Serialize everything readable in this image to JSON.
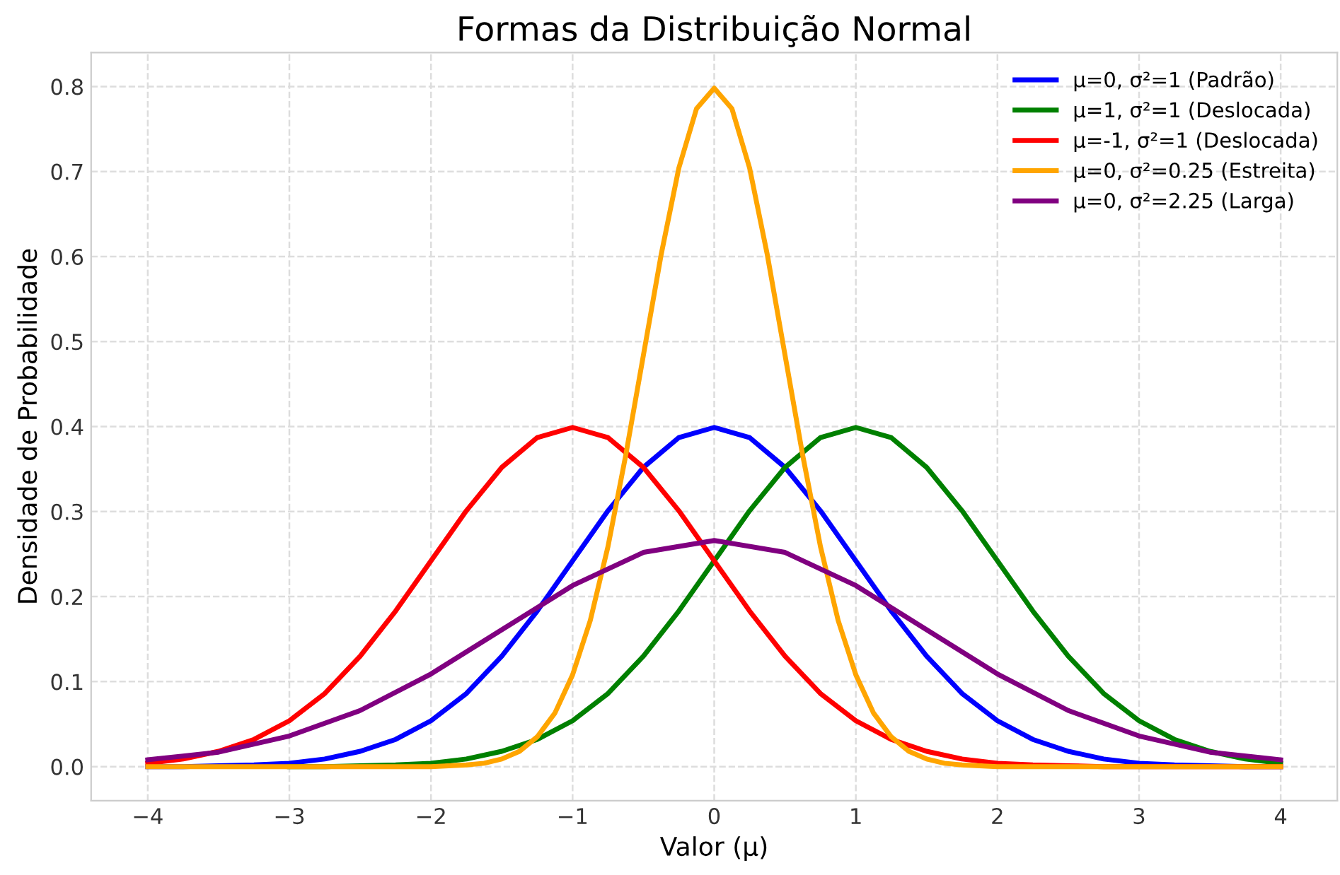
{
  "chart_data": {
    "type": "line",
    "title": "Formas da Distribuição Normal",
    "xlabel": "Valor (μ)",
    "ylabel": "Densidade de Probabilidade",
    "x": [
      -4,
      -3.75,
      -3.5,
      -3.25,
      -3,
      -2.75,
      -2.5,
      -2.25,
      -2,
      -1.75,
      -1.5,
      -1.25,
      -1,
      -0.75,
      -0.5,
      -0.25,
      0,
      0.25,
      0.5,
      0.75,
      1,
      1.25,
      1.5,
      1.75,
      2,
      2.25,
      2.5,
      2.75,
      3,
      3.25,
      3.5,
      3.75,
      4
    ],
    "series": [
      {
        "name": "μ=0, σ²=1 (Padrão)",
        "color": "#0000ff",
        "values": [
          0.0,
          0.0,
          0.001,
          0.002,
          0.004,
          0.009,
          0.018,
          0.032,
          0.054,
          0.086,
          0.13,
          0.183,
          0.242,
          0.301,
          0.352,
          0.387,
          0.399,
          0.387,
          0.352,
          0.301,
          0.242,
          0.183,
          0.13,
          0.086,
          0.054,
          0.032,
          0.018,
          0.009,
          0.004,
          0.002,
          0.001,
          0.0,
          0.0
        ]
      },
      {
        "name": "μ=1, σ²=1 (Deslocada)",
        "color": "#008000",
        "values": [
          null,
          null,
          null,
          null,
          0.0,
          0.0,
          0.001,
          0.002,
          0.004,
          0.009,
          0.018,
          0.032,
          0.054,
          0.086,
          0.13,
          0.183,
          0.242,
          0.301,
          0.352,
          0.387,
          0.399,
          0.387,
          0.352,
          0.301,
          0.242,
          0.183,
          0.13,
          0.086,
          0.054,
          0.032,
          0.018,
          0.009,
          0.004
        ]
      },
      {
        "name": "μ=-1, σ²=1 (Deslocada)",
        "color": "#ff0000",
        "values": [
          0.004,
          0.009,
          0.018,
          0.032,
          0.054,
          0.086,
          0.13,
          0.183,
          0.242,
          0.301,
          0.352,
          0.387,
          0.399,
          0.387,
          0.352,
          0.301,
          0.242,
          0.183,
          0.13,
          0.086,
          0.054,
          0.032,
          0.018,
          0.009,
          0.004,
          0.002,
          0.001,
          0.0,
          0.0,
          0.0,
          0.0,
          0.0,
          0.0
        ]
      },
      {
        "name": "μ=0, σ²=0.25 (Estreita)",
        "color": "#ffa500",
        "x": [
          -4,
          -2,
          -1.75,
          -1.625,
          -1.5,
          -1.375,
          -1.25,
          -1.125,
          -1,
          -0.875,
          -0.75,
          -0.625,
          -0.5,
          -0.375,
          -0.25,
          -0.125,
          0,
          0.125,
          0.25,
          0.375,
          0.5,
          0.625,
          0.75,
          0.875,
          1,
          1.125,
          1.25,
          1.375,
          1.5,
          1.625,
          1.75,
          2,
          4
        ],
        "values": [
          0.0,
          0.0,
          0.002,
          0.004,
          0.009,
          0.018,
          0.035,
          0.063,
          0.108,
          0.172,
          0.259,
          0.366,
          0.484,
          0.602,
          0.704,
          0.774,
          0.798,
          0.774,
          0.704,
          0.602,
          0.484,
          0.366,
          0.259,
          0.172,
          0.108,
          0.063,
          0.035,
          0.018,
          0.009,
          0.004,
          0.002,
          0.0,
          0.0
        ]
      },
      {
        "name": "μ=0, σ²=2.25 (Larga)",
        "color": "#800080",
        "x": [
          -4,
          -3.5,
          -3,
          -2.5,
          -2,
          -1.5,
          -1,
          -0.5,
          0,
          0.5,
          1,
          1.5,
          2,
          2.5,
          3,
          3.5,
          4
        ],
        "values": [
          0.008,
          0.017,
          0.036,
          0.066,
          0.109,
          0.161,
          0.213,
          0.252,
          0.266,
          0.252,
          0.213,
          0.161,
          0.109,
          0.066,
          0.036,
          0.017,
          0.008
        ]
      }
    ],
    "xlim": [
      -4.4,
      4.4
    ],
    "ylim": [
      -0.04,
      0.84
    ],
    "xticks": [
      {
        "value": -4,
        "label": "−4"
      },
      {
        "value": -3,
        "label": "−3"
      },
      {
        "value": -2,
        "label": "−2"
      },
      {
        "value": -1,
        "label": "−1"
      },
      0,
      1,
      2,
      3,
      4
    ],
    "yticks": [
      {
        "value": 0,
        "label": "0.0"
      },
      0.1,
      0.2,
      0.3,
      0.4,
      0.5,
      0.6,
      0.7,
      0.8
    ],
    "grid": true,
    "legend": "top right",
    "line_style": "solid",
    "marker": "none"
  }
}
